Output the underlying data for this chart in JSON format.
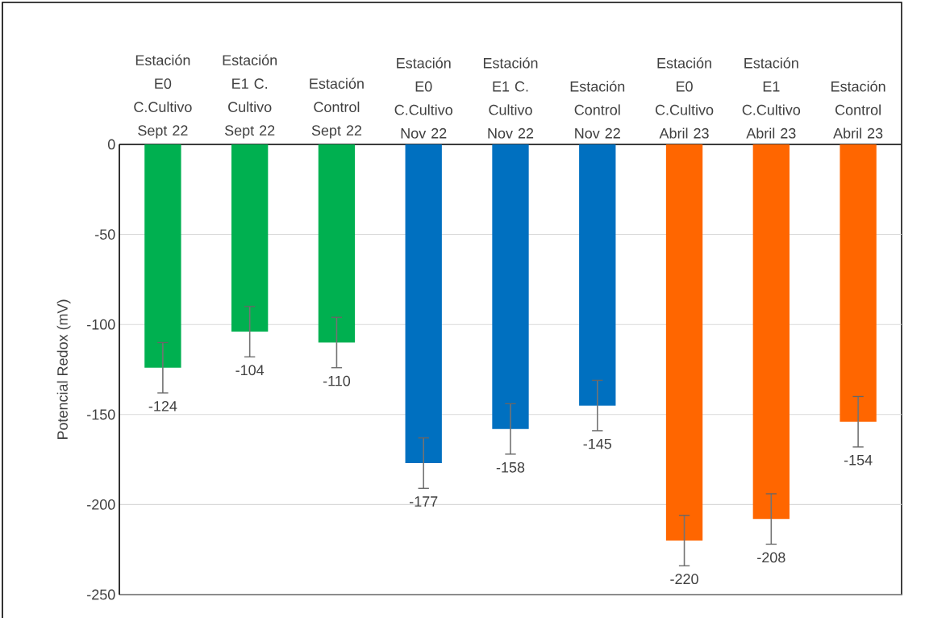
{
  "chart_data": {
    "type": "bar",
    "ylabel": "Potencial Redox (mV)",
    "categories": [
      "Estación E0 C.Cultivo Sept 22",
      "Estación E1 C. Cultivo Sept 22",
      "Estación Control Sept 22",
      "Estación E0 C.Cultivo Nov 22",
      "Estación E1 C. Cultivo Nov 22",
      "Estación Control Nov 22",
      "Estación E0 C.Cultivo Abril 23",
      "Estación E1 C.Cultivo Abril 23",
      "Estación Control Abril 23"
    ],
    "values": [
      -124,
      -104,
      -110,
      -177,
      -158,
      -145,
      -220,
      -208,
      -154
    ],
    "errors": [
      14,
      14,
      14,
      14,
      14,
      14,
      14,
      14,
      14
    ],
    "colors": [
      "#00b050",
      "#00b050",
      "#00b050",
      "#0070c0",
      "#0070c0",
      "#0070c0",
      "#ff6600",
      "#ff6600",
      "#ff6600"
    ],
    "data_labels": true,
    "ylim": [
      -250,
      0
    ],
    "yticks": [
      -250,
      -200,
      -150,
      -100,
      -50,
      0
    ],
    "grid": "y"
  }
}
